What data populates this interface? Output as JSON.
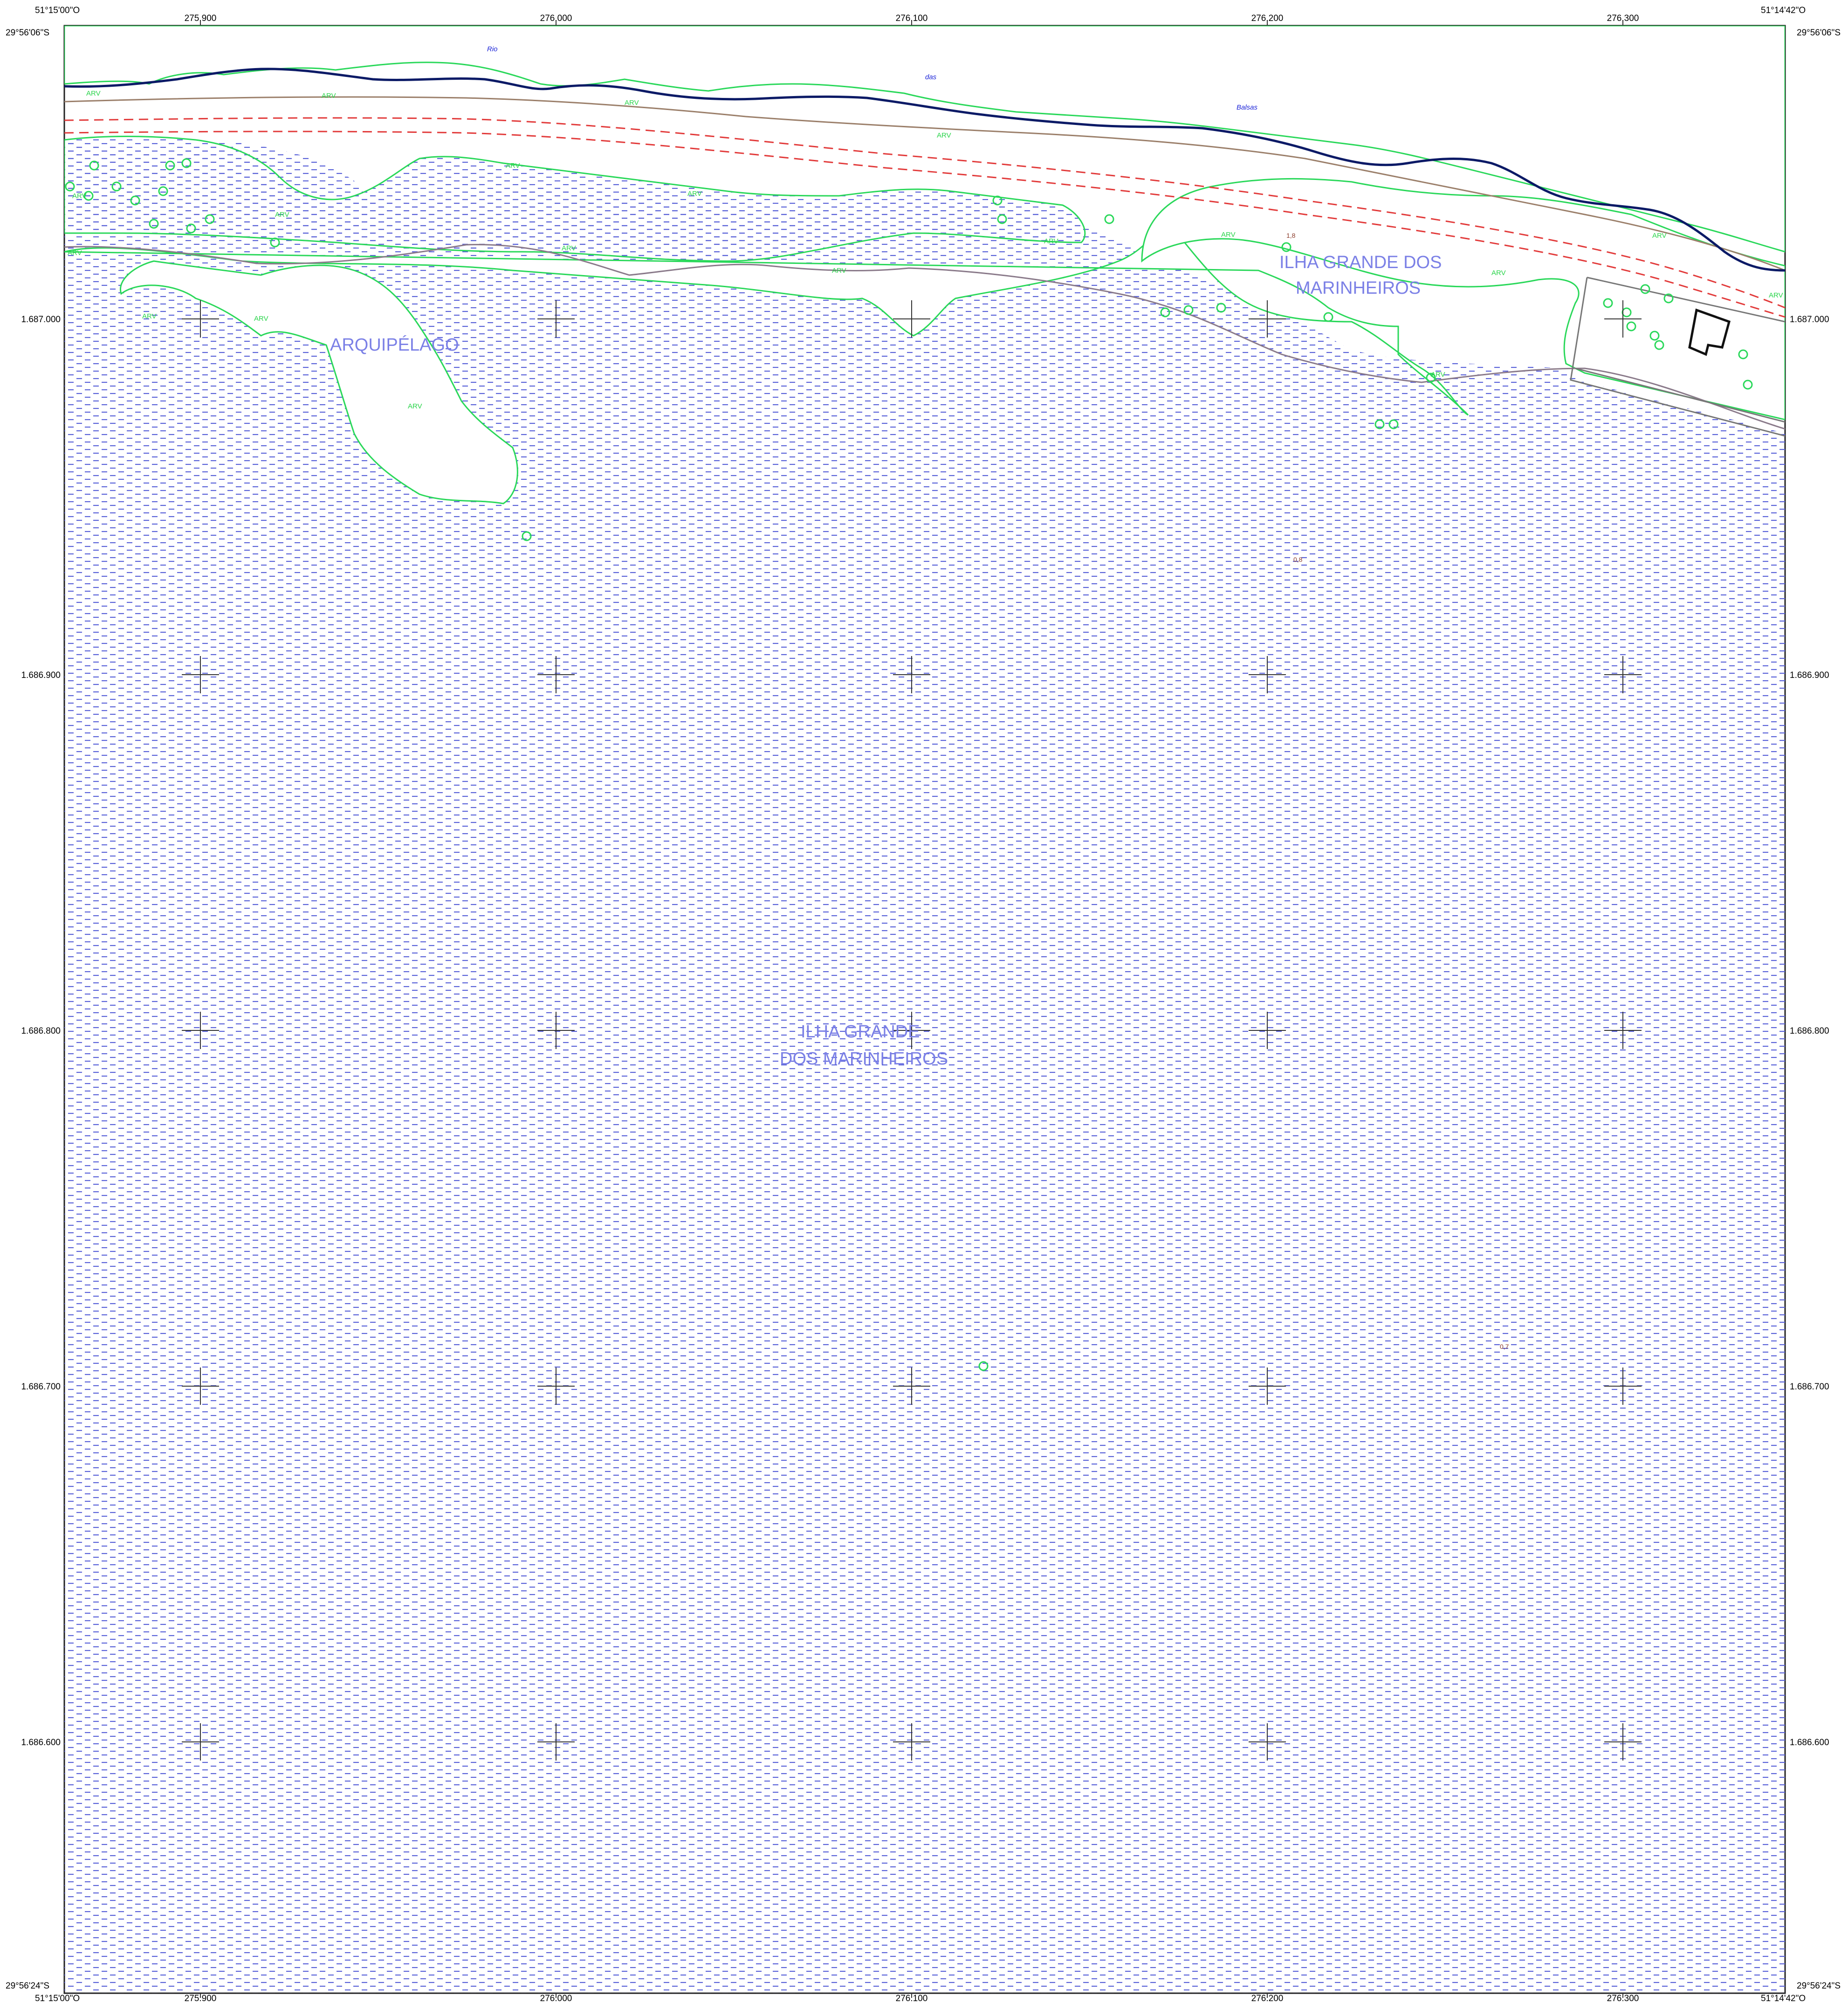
{
  "corners": {
    "top_left_lon": "51°15'00\"O",
    "top_right_lon": "51°14'42\"O",
    "bottom_left_lon": "51°15'00\"O",
    "bottom_right_lon": "51°14'42\"O",
    "top_left_lat": "29°56'06\"S",
    "top_right_lat": "29°56'06\"S",
    "bottom_left_lat": "29°56'24\"S",
    "bottom_right_lat": "29°56'24\"S"
  },
  "easting_ticks": [
    "275.900",
    "276.000",
    "276.100",
    "276.200",
    "276.300"
  ],
  "northing_ticks": [
    "1.687.000",
    "1.686.900",
    "1.686.800",
    "1.686.700",
    "1.686.600"
  ],
  "place_names": {
    "arquipelago": "ARQUIPÉLAGO",
    "ilha_north_line1": "ILHA GRANDE DOS",
    "ilha_north_line2": "MARINHEIROS",
    "ilha_center_line1": "ILHA GRANDE",
    "ilha_center_line2": "DOS MARINHEIROS"
  },
  "river_words": [
    "Rio",
    "das",
    "Balsas"
  ],
  "vegetation_label": "ARV",
  "spot_heights": [
    "1,8",
    "0,8",
    "0,7"
  ],
  "colors": {
    "water_hatch": "#5a62d8",
    "vegetation": "#2ad85a",
    "river_line": "#0b1a66",
    "road_line": "#e23b3b",
    "contour_line": "#9b7f6a",
    "grid_cross": "#333333"
  }
}
